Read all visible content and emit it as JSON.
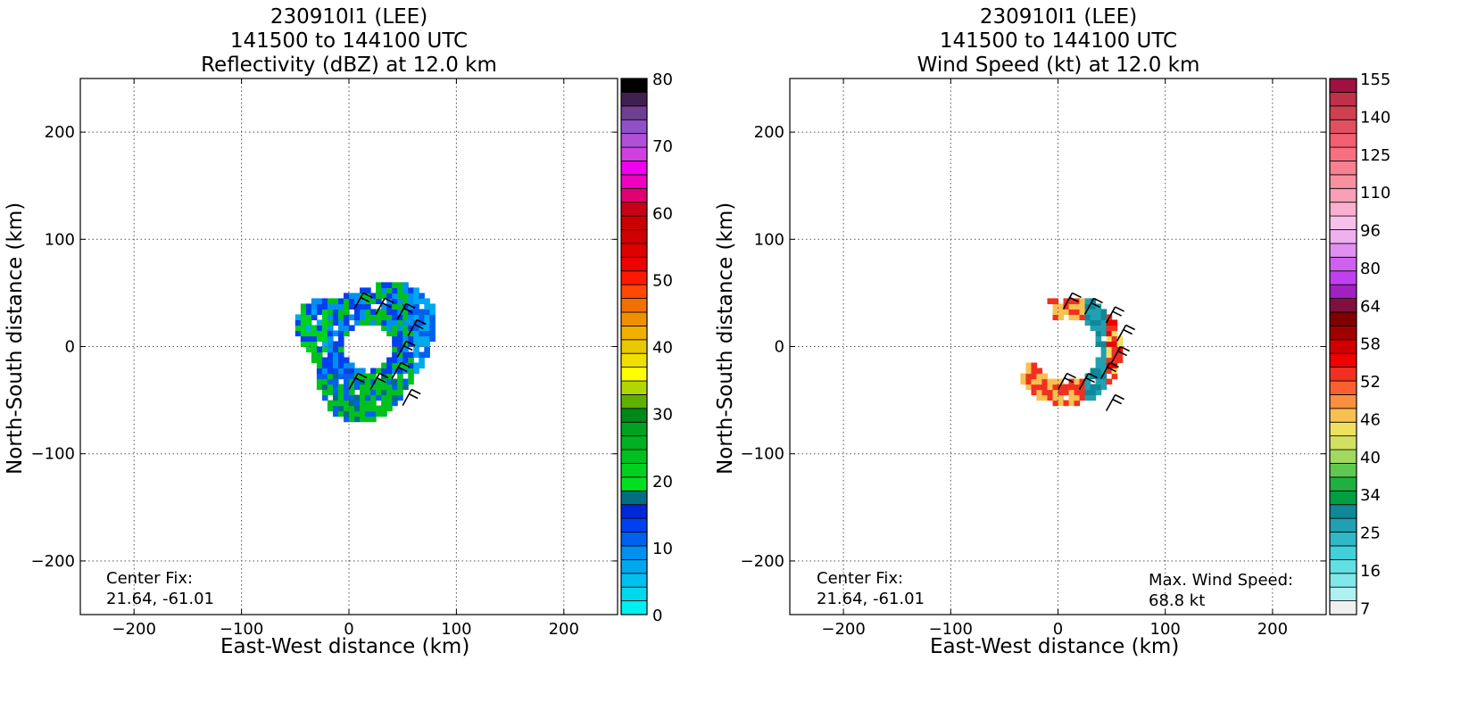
{
  "panels": [
    {
      "title_lines": [
        "230910I1 (LEE)",
        "141500 to 144100 UTC",
        "Reflectivity (dBZ) at 12.0 km"
      ],
      "xlabel": "East-West distance (km)",
      "ylabel": "North-South distance (km)",
      "center_fix": {
        "label": "Center Fix:",
        "value": "21.64, -61.01"
      },
      "max_wind": null
    },
    {
      "title_lines": [
        "230910I1 (LEE)",
        "141500 to 144100 UTC",
        "Wind Speed (kt) at 12.0 km"
      ],
      "xlabel": "East-West distance (km)",
      "ylabel": "North-South distance (km)",
      "center_fix": {
        "label": "Center Fix:",
        "value": "21.64, -61.01"
      },
      "max_wind": {
        "label": "Max. Wind Speed:",
        "value": "68.8 kt"
      }
    }
  ],
  "chart_data": [
    {
      "type": "heatmap",
      "title": "230910I1 (LEE) 141500 to 144100 UTC Reflectivity (dBZ) at 12.0 km",
      "xlabel": "East-West distance (km)",
      "ylabel": "North-South distance (km)",
      "xlim": [
        -250,
        250
      ],
      "ylim": [
        -250,
        250
      ],
      "xticks": [
        -200,
        -100,
        0,
        100,
        200
      ],
      "yticks": [
        -200,
        -100,
        0,
        100,
        200
      ],
      "grid": true,
      "colorbar": {
        "min": 0,
        "max": 80,
        "ticks": [
          0,
          10,
          20,
          30,
          40,
          50,
          60,
          70,
          80
        ],
        "colors": [
          "#00f0f0",
          "#00d8ec",
          "#00c0f0",
          "#00a8f0",
          "#0090f0",
          "#0060f0",
          "#0040f0",
          "#0028d8",
          "#006e80",
          "#00e020",
          "#00d020",
          "#00c020",
          "#00b020",
          "#00a020",
          "#008818",
          "#60b000",
          "#b0d800",
          "#ffff00",
          "#f0e000",
          "#e8c800",
          "#f0b000",
          "#f09000",
          "#f07000",
          "#ff4800",
          "#ff1800",
          "#f00000",
          "#e00000",
          "#d00000",
          "#c80000",
          "#c80018",
          "#e00070",
          "#f000c0",
          "#f000f0",
          "#d040e0",
          "#b050d8",
          "#9050c8",
          "#704090",
          "#402050",
          "#000000"
        ]
      },
      "data_description_points": [
        {
          "x": 0,
          "y": 0,
          "value": null
        },
        {
          "x": -40,
          "y": 10,
          "value": 22
        },
        {
          "x": 40,
          "y": -25,
          "value": 20
        },
        {
          "x": -10,
          "y": -45,
          "value": 15
        },
        {
          "x": 70,
          "y": 0,
          "value": 8
        }
      ]
    },
    {
      "type": "heatmap",
      "title": "230910I1 (LEE) 141500 to 144100 UTC Wind Speed (kt) at 12.0 km",
      "xlabel": "East-West distance (km)",
      "ylabel": "North-South distance (km)",
      "xlim": [
        -250,
        250
      ],
      "ylim": [
        -250,
        250
      ],
      "xticks": [
        -200,
        -100,
        0,
        100,
        200
      ],
      "yticks": [
        -200,
        -100,
        0,
        100,
        200
      ],
      "grid": true,
      "colorbar": {
        "tick_labels": [
          "7",
          "16",
          "25",
          "34",
          "40",
          "46",
          "52",
          "58",
          "64",
          "80",
          "96",
          "110",
          "125",
          "140",
          "155"
        ],
        "colors": [
          "#f0f0f0",
          "#b0f0f0",
          "#80e8e8",
          "#60e0e0",
          "#40d0d8",
          "#30b8c8",
          "#20a0b0",
          "#108898",
          "#00a040",
          "#20b040",
          "#60c850",
          "#a0d860",
          "#d0e060",
          "#f0e060",
          "#f8c050",
          "#f89040",
          "#f86030",
          "#f03020",
          "#f00000",
          "#d00000",
          "#a00000",
          "#800000",
          "#801040",
          "#a020c0",
          "#c040f0",
          "#d060f0",
          "#e090f0",
          "#f0b0f0",
          "#f8c0e8",
          "#f8b0d0",
          "#f8a0b8",
          "#f890a0",
          "#f88090",
          "#f87080",
          "#f06070",
          "#e05060",
          "#d04050",
          "#c03048",
          "#a01040"
        ]
      },
      "max_wind_speed_kt": 68.8,
      "data_description_points": [
        {
          "x": 55,
          "y": -20,
          "value": 58
        },
        {
          "x": 30,
          "y": 35,
          "value": 50
        },
        {
          "x": -20,
          "y": -35,
          "value": 55
        },
        {
          "x": 65,
          "y": -10,
          "value": 40
        }
      ]
    }
  ]
}
